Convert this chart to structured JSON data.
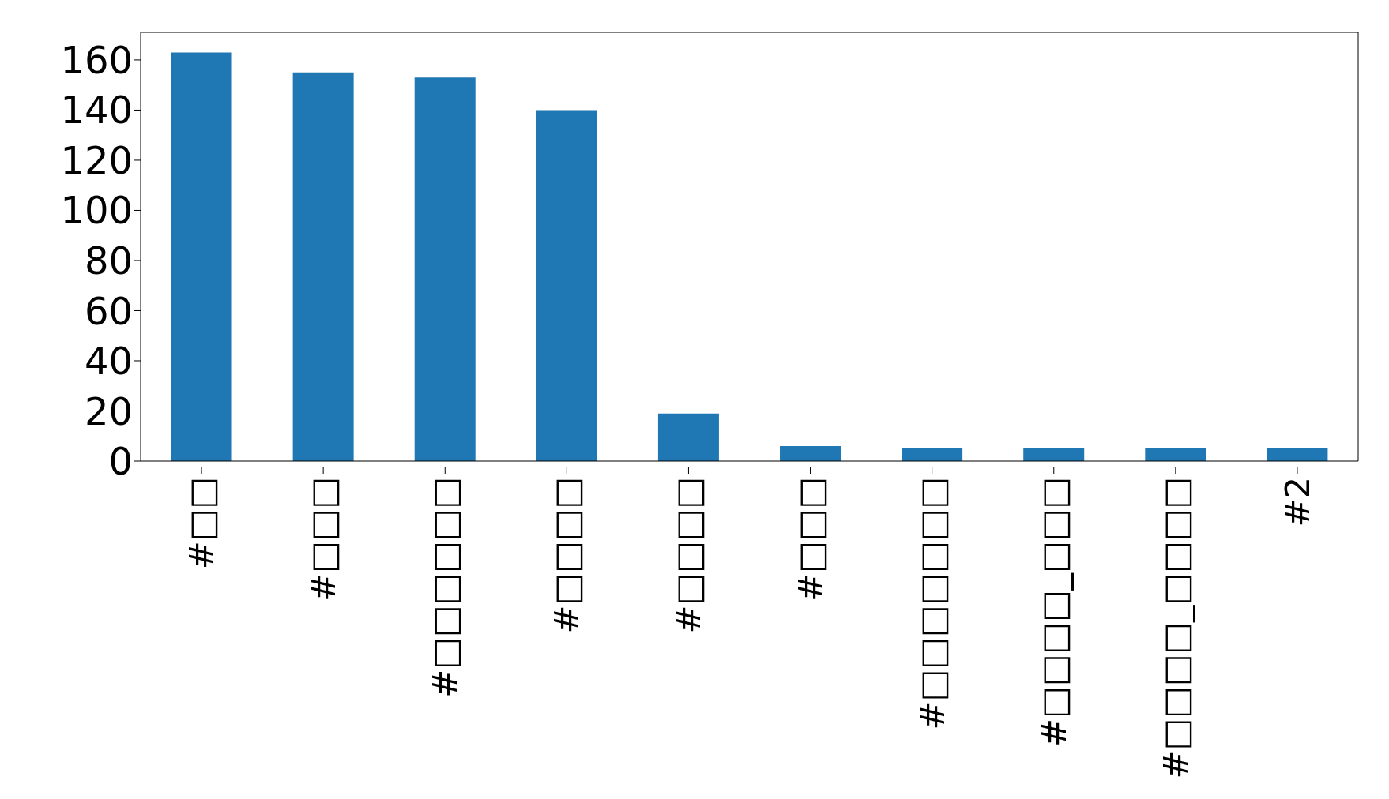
{
  "chart_data": {
    "type": "bar",
    "categories": [
      "#□□",
      "#□□□",
      "#□□□□□□",
      "#□□□□",
      "#□□□□",
      "#□□□",
      "#□□□□□□□",
      "#□□□□_□□□",
      "#□□□□_□□□□",
      "#2"
    ],
    "values": [
      163,
      155,
      153,
      140,
      19,
      6,
      5,
      5,
      5,
      5
    ],
    "color": "#1f77b4",
    "ylim": [
      0,
      171
    ],
    "yticks": [
      0,
      20,
      40,
      60,
      80,
      100,
      120,
      140,
      160
    ]
  }
}
